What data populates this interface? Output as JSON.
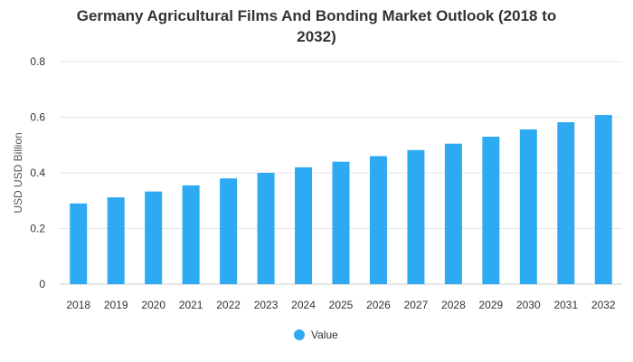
{
  "chart_data": {
    "type": "bar",
    "title_lines": [
      "Germany Agricultural Films And Bonding Market Outlook (2018 to",
      "2032)"
    ],
    "categories": [
      "2018",
      "2019",
      "2020",
      "2021",
      "2022",
      "2023",
      "2024",
      "2025",
      "2026",
      "2027",
      "2028",
      "2029",
      "2030",
      "2031",
      "2032"
    ],
    "series": [
      {
        "name": "Value",
        "color": "#2eaaf3",
        "values": [
          0.29,
          0.312,
          0.333,
          0.355,
          0.38,
          0.4,
          0.42,
          0.44,
          0.46,
          0.482,
          0.505,
          0.53,
          0.556,
          0.582,
          0.608
        ]
      }
    ],
    "ylabel": "USD USD Billion",
    "xlabel": "",
    "ylim": [
      0,
      0.8
    ],
    "yticks": [
      "0",
      "0.2",
      "0.4",
      "0.6",
      "0.8"
    ],
    "ytick_values": [
      0,
      0.2,
      0.4,
      0.6,
      0.8
    ],
    "grid": true,
    "legend_position": "bottom-center"
  }
}
